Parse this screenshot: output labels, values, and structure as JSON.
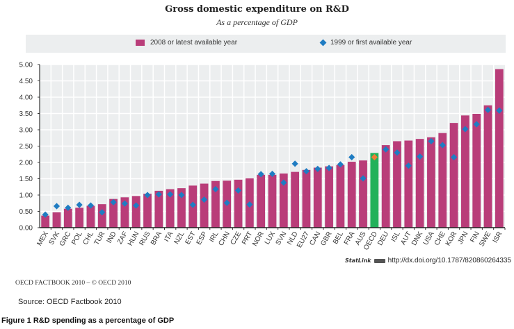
{
  "chart_data": {
    "type": "bar",
    "title": "Gross domestic expenditure on R&D",
    "subtitle": "As a percentage of GDP",
    "xlabel": "",
    "ylabel": "",
    "ylim": [
      0,
      5
    ],
    "yticks": [
      "0.00",
      "0.50",
      "1.00",
      "1.50",
      "2.00",
      "2.50",
      "3.00",
      "3.50",
      "4.00",
      "4.50",
      "5.00"
    ],
    "grid": true,
    "legend_position": "top",
    "categories": [
      "MEX",
      "SVK",
      "GRC",
      "POL",
      "CHL",
      "TUR",
      "IND",
      "ZAF",
      "HUN",
      "RUS",
      "BRA",
      "ITA",
      "NZL",
      "EST",
      "ESP",
      "IRL",
      "CHN",
      "CZE",
      "PRT",
      "NOR",
      "LUX",
      "SVN",
      "NLD",
      "EU27",
      "CAN",
      "GBR",
      "BEL",
      "FRA",
      "AUS",
      "OECD",
      "DEU",
      "ISL",
      "AUT",
      "DNK",
      "USA",
      "CHE",
      "KOR",
      "JPN",
      "FIN",
      "SWE",
      "ISR"
    ],
    "highlight_category": "OECD",
    "series": [
      {
        "name": "2008 or latest available year",
        "kind": "bar",
        "color": "#b93d79",
        "highlight_color": "#22b15a",
        "values": [
          0.37,
          0.47,
          0.58,
          0.61,
          0.67,
          0.72,
          0.88,
          0.93,
          0.97,
          1.04,
          1.13,
          1.18,
          1.21,
          1.29,
          1.35,
          1.43,
          1.44,
          1.47,
          1.51,
          1.62,
          1.62,
          1.66,
          1.71,
          1.77,
          1.84,
          1.88,
          1.92,
          2.02,
          2.06,
          2.29,
          2.53,
          2.65,
          2.67,
          2.72,
          2.77,
          2.9,
          3.21,
          3.44,
          3.49,
          3.75,
          4.86
        ]
      },
      {
        "name": "1999 or first available year",
        "kind": "diamond",
        "color": "#1f7cc2",
        "highlight_color": "#f07c33",
        "values": [
          0.4,
          0.66,
          0.61,
          0.7,
          0.68,
          0.47,
          0.78,
          0.74,
          0.68,
          1.0,
          1.02,
          1.02,
          1.0,
          0.7,
          0.86,
          1.18,
          0.76,
          1.14,
          0.71,
          1.64,
          1.65,
          1.38,
          1.96,
          1.73,
          1.8,
          1.83,
          1.94,
          2.16,
          1.51,
          2.16,
          2.4,
          2.3,
          1.9,
          2.18,
          2.65,
          2.53,
          2.16,
          3.02,
          3.17,
          3.61,
          3.59
        ]
      }
    ]
  },
  "legend": {
    "bar_label": "2008 or latest available year",
    "diamond_label": "1999 or first available year"
  },
  "statlink": {
    "label": "StatLink",
    "url": "http://dx.doi.org/10.1787/820860264335"
  },
  "footer": {
    "factbook": "OECD FACTBOOK 2010 – © OECD 2010",
    "source": "Source: OECD Factbook 2010",
    "caption": "Figure 1 R&D spending as a percentage of GDP"
  }
}
